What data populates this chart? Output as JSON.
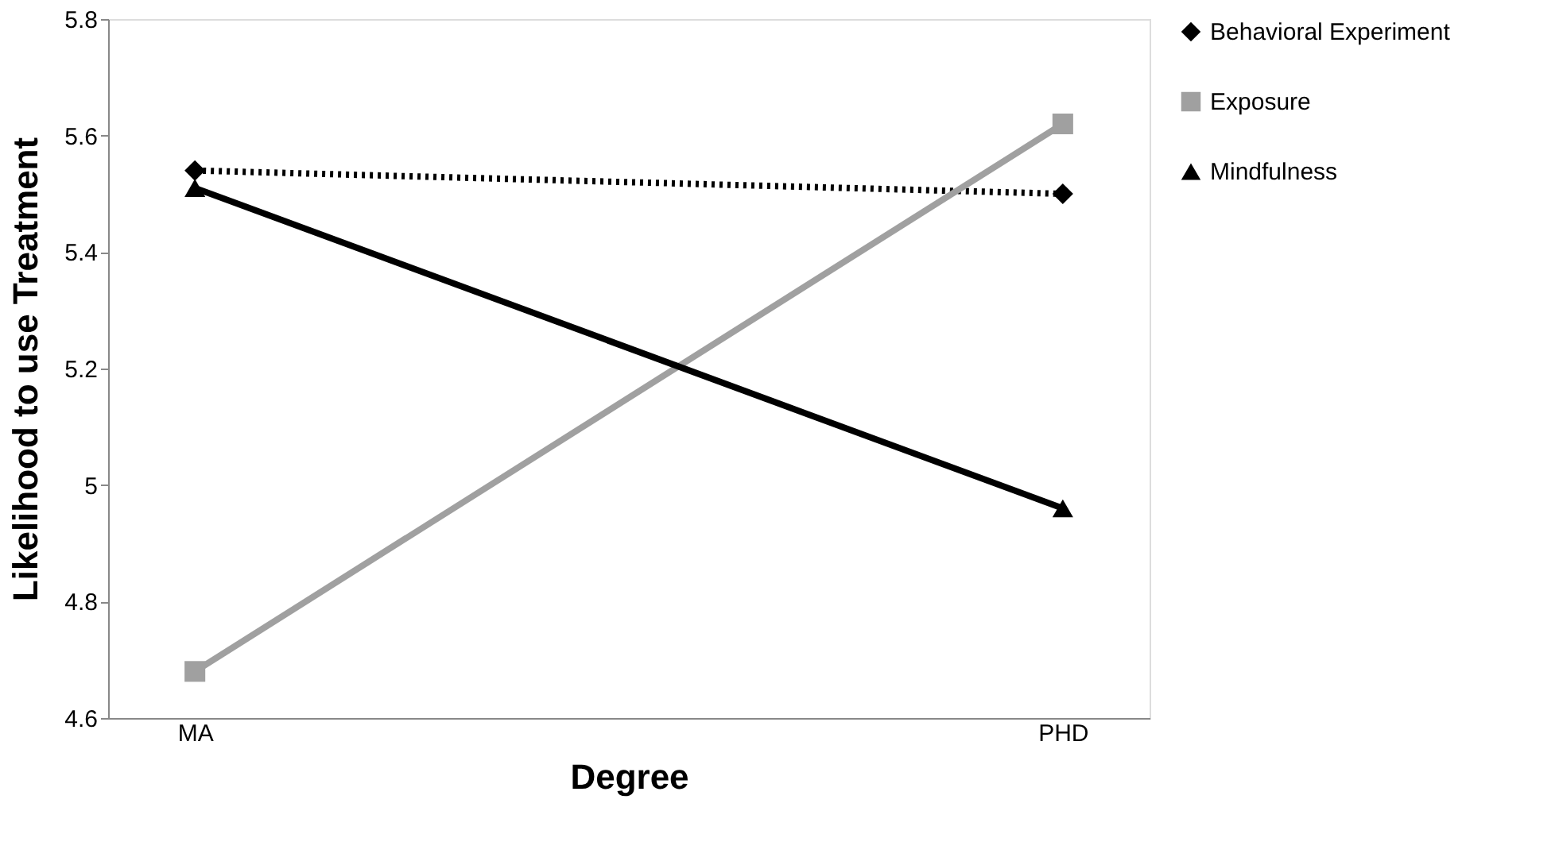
{
  "chart_data": {
    "type": "line",
    "xlabel": "Degree",
    "ylabel": "Likelihood to use Treatment",
    "categories": [
      "MA",
      "PHD"
    ],
    "series": [
      {
        "name": "Behavioral Experiment",
        "color": "#000000",
        "values": [
          5.54,
          5.5
        ],
        "marker": "diamond",
        "line_style": "dotted"
      },
      {
        "name": "Exposure",
        "color": "#a0a0a0",
        "values": [
          4.68,
          5.62
        ],
        "marker": "square",
        "line_style": "solid"
      },
      {
        "name": "Mindfulness",
        "color": "#000000",
        "values": [
          5.51,
          4.96
        ],
        "marker": "triangle",
        "line_style": "solid"
      }
    ],
    "ylim": [
      4.6,
      5.8
    ],
    "yticks": [
      4.6,
      4.8,
      5,
      5.2,
      5.4,
      5.6,
      5.8
    ],
    "grid": false,
    "legend": "right"
  }
}
